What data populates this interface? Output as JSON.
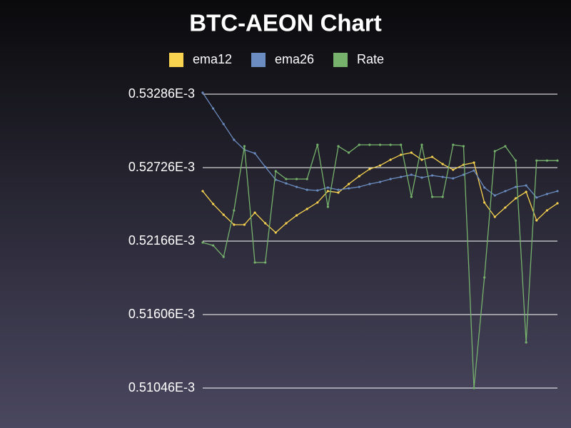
{
  "chart_data": {
    "type": "line",
    "title": "BTC-AEON Chart",
    "categories": [
      null,
      null,
      null,
      null,
      null,
      null,
      null,
      null,
      null,
      null,
      null,
      null,
      null,
      null,
      null,
      null,
      null,
      null,
      null,
      null,
      null,
      null,
      null,
      null,
      null,
      null,
      null,
      null,
      null,
      null,
      null,
      null,
      null,
      null,
      null
    ],
    "ylim": [
      0.00051046,
      0.00053286
    ],
    "yticks": [
      {
        "value": 0.00051046,
        "label": "0.51046E-3"
      },
      {
        "value": 0.00051606,
        "label": "0.51606E-3"
      },
      {
        "value": 0.00052166,
        "label": "0.52166E-3"
      },
      {
        "value": 0.00052726,
        "label": "0.52726E-3"
      },
      {
        "value": 0.00053286,
        "label": "0.53286E-3"
      }
    ],
    "grid": true,
    "legend": "top",
    "series": [
      {
        "name": "ema12",
        "color": "#f7d34f",
        "values": [
          0.00052547,
          0.00052449,
          0.00052367,
          0.00052291,
          0.00052291,
          0.00052383,
          0.00052302,
          0.00052231,
          0.00052302,
          0.00052362,
          0.00052411,
          0.0005246,
          0.00052547,
          0.00052536,
          0.00052601,
          0.00052661,
          0.00052715,
          0.00052742,
          0.00052786,
          0.00052824,
          0.0005284,
          0.00052786,
          0.00052808,
          0.00052753,
          0.0005271,
          0.00052748,
          0.00052764,
          0.0005246,
          0.00052351,
          0.00052422,
          0.00052492,
          0.00052541,
          0.00052324,
          0.000524,
          0.00052454
        ]
      },
      {
        "name": "ema26",
        "color": "#6b8cc0",
        "values": [
          0.00053297,
          0.00053177,
          0.00053058,
          0.00052938,
          0.00052862,
          0.00052835,
          0.00052731,
          0.00052634,
          0.00052606,
          0.00052579,
          0.00052557,
          0.00052552,
          0.00052574,
          0.00052557,
          0.00052568,
          0.00052579,
          0.00052601,
          0.00052617,
          0.00052639,
          0.00052655,
          0.00052672,
          0.0005265,
          0.00052666,
          0.00052655,
          0.00052644,
          0.00052672,
          0.00052704,
          0.00052574,
          0.00052514,
          0.00052547,
          0.00052579,
          0.0005259,
          0.00052498,
          0.00052525,
          0.00052547
        ]
      },
      {
        "name": "Rate",
        "color": "#76b26c",
        "values": [
          0.00052155,
          0.00052133,
          0.00052046,
          0.000524,
          0.00052889,
          0.00052003,
          0.00052003,
          0.00052699,
          0.00052639,
          0.00052639,
          0.00052639,
          0.000529,
          0.00052427,
          0.00052889,
          0.0005284,
          0.000529,
          0.000529,
          0.000529,
          0.000529,
          0.000529,
          0.00052503,
          0.000529,
          0.00052503,
          0.00052503,
          0.000529,
          0.00052889,
          0.00051046,
          0.00051889,
          0.00052851,
          0.00052889,
          0.0005278,
          0.00051394,
          0.0005278,
          0.0005278,
          0.0005278
        ]
      }
    ]
  }
}
